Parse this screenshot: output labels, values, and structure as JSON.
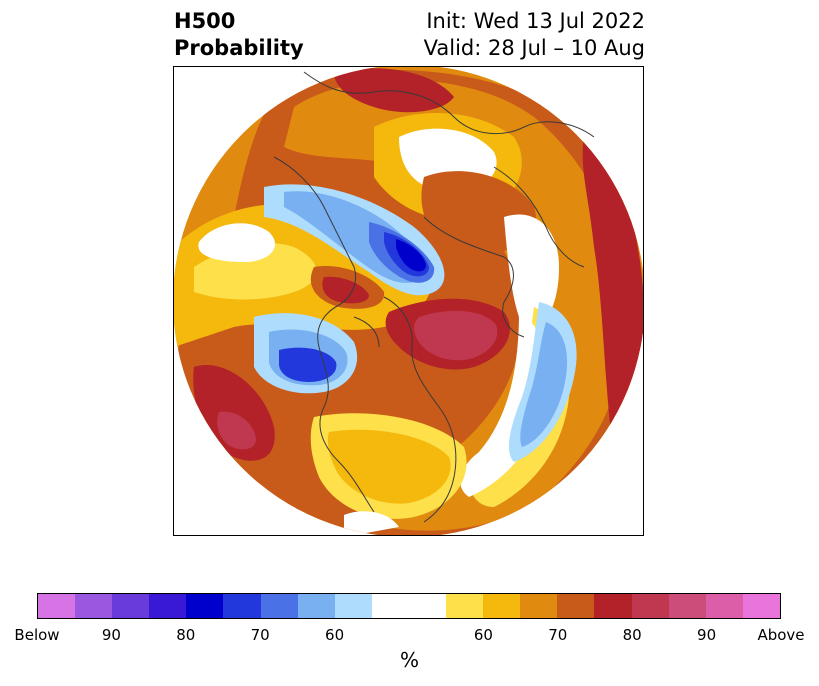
{
  "header": {
    "title_line1": "H500",
    "title_line2": "Probability",
    "init_text": "Init: Wed 13 Jul 2022",
    "valid_text": "Valid: 28 Jul – 10 Aug"
  },
  "colorbar": {
    "unit": "%",
    "colors": [
      "#d674e6",
      "#9a58e0",
      "#6a3bdb",
      "#3919d6",
      "#0000cc",
      "#2338dc",
      "#4a72e6",
      "#78b0f2",
      "#aedcfc",
      "#ffffff",
      "#fde04a",
      "#f4b90c",
      "#e08a10",
      "#c85a1a",
      "#b22228",
      "#c03850",
      "#cc4c7a",
      "#dc5ea8",
      "#e874dc"
    ],
    "labels": [
      "Below",
      "90",
      "80",
      "70",
      "60",
      "60",
      "70",
      "80",
      "90",
      "Above"
    ]
  },
  "map": {
    "palette": {
      "above_40": "#fde04a",
      "above_45": "#f4b90c",
      "above_50": "#e08a10",
      "above_55": "#c85a1a",
      "above_60": "#b22228",
      "above_65": "#c03850",
      "above_70": "#cc4c7a",
      "below_40": "#aedcfc",
      "below_45": "#78b0f2",
      "below_50": "#4a72e6",
      "below_55": "#2338dc",
      "below_60": "#0000cc",
      "neutral": "#ffffff",
      "coastline": "#3a3a3a"
    }
  }
}
